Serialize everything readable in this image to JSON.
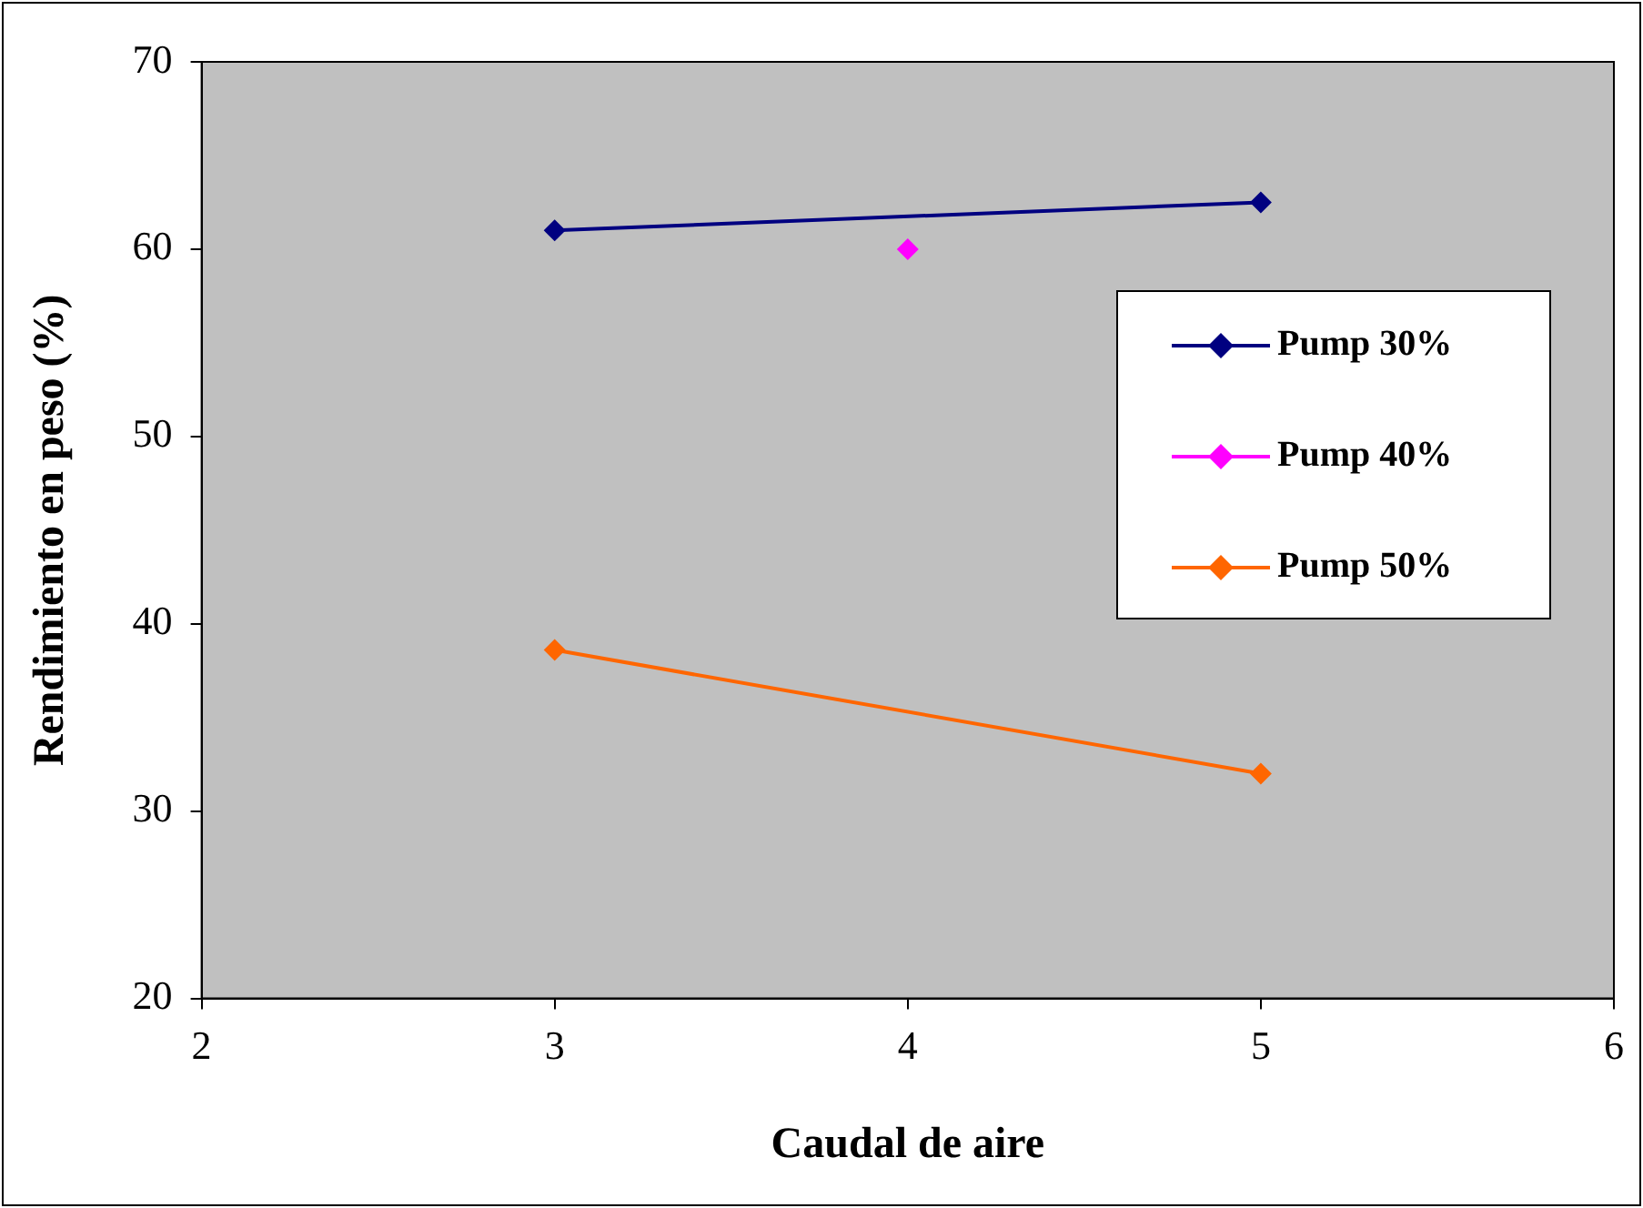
{
  "chart_data": {
    "type": "line",
    "xlabel": "Caudal de aire",
    "ylabel": "Rendimiento en peso (%)",
    "xlim": [
      2,
      6
    ],
    "xticks": [
      2,
      3,
      4,
      5,
      6
    ],
    "ylim": [
      20,
      70
    ],
    "yticks": [
      20,
      30,
      40,
      50,
      60,
      70
    ],
    "grid": false,
    "legend": "right",
    "marker": "diamond",
    "series": [
      {
        "name": "Pump 30%",
        "color": "#000080",
        "x": [
          3,
          5
        ],
        "values": [
          61,
          62.5
        ]
      },
      {
        "name": "Pump 40%",
        "color": "#ff00ff",
        "x": [
          4
        ],
        "values": [
          60
        ]
      },
      {
        "name": "Pump 50%",
        "color": "#ff6600",
        "x": [
          3,
          5
        ],
        "values": [
          38.6,
          32
        ]
      }
    ]
  }
}
